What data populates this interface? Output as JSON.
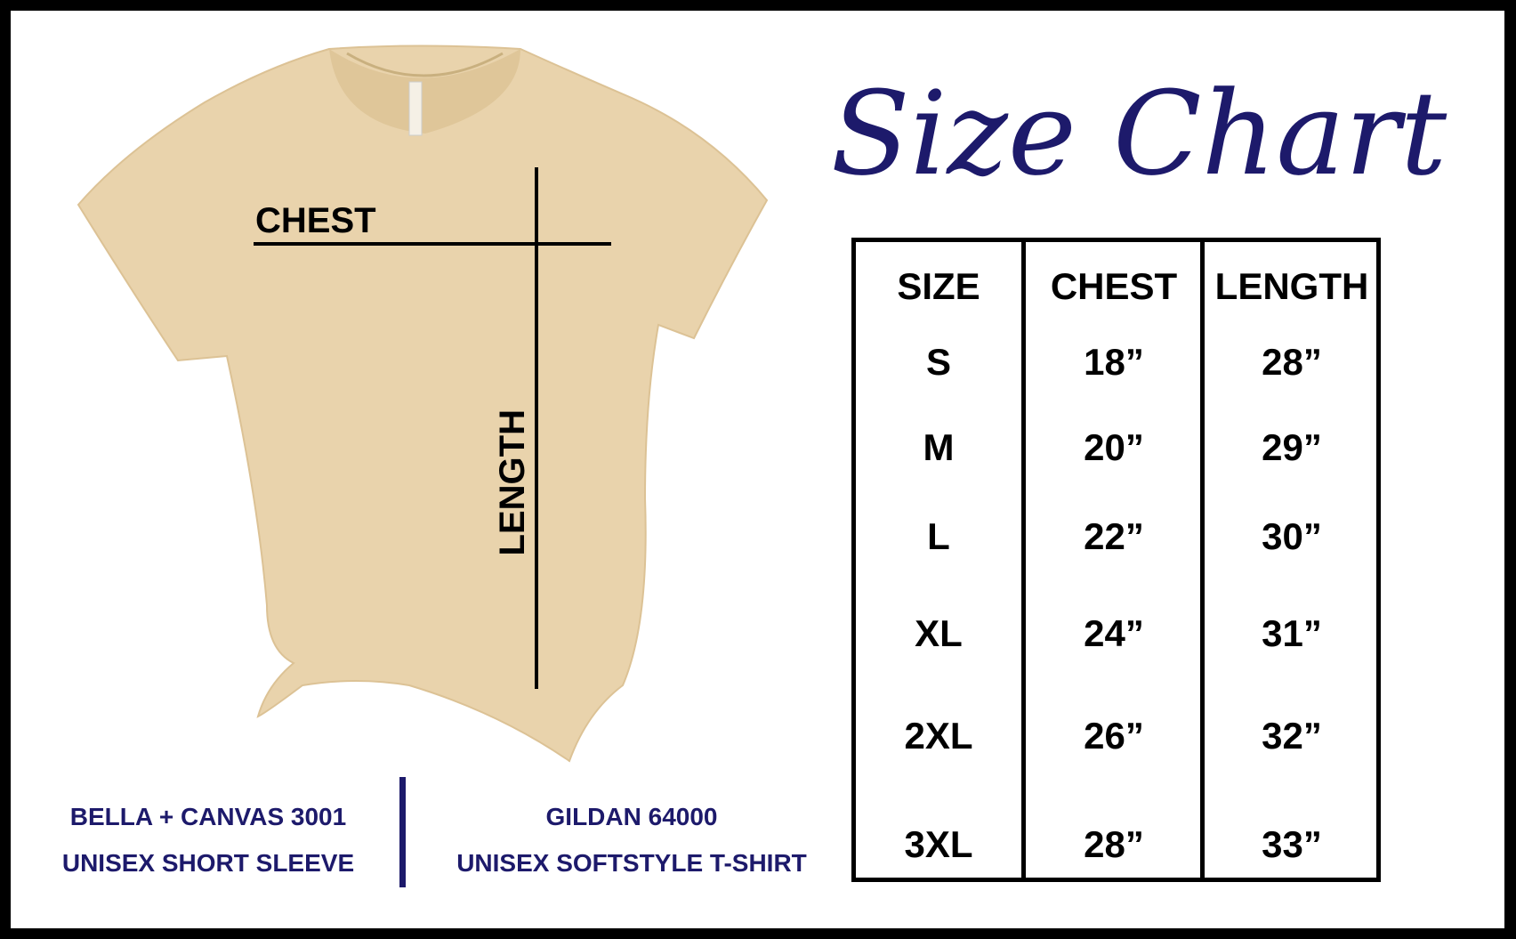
{
  "title": "Size Chart",
  "colors": {
    "accent": "#1d1a6b",
    "shirt": "#e9d3ac",
    "border": "#000000"
  },
  "diagram": {
    "chest_label": "CHEST",
    "length_label": "LENGTH"
  },
  "table": {
    "headers": [
      "SIZE",
      "CHEST",
      "LENGTH"
    ],
    "rows": [
      {
        "size": "S",
        "chest": "18”",
        "length": "28”"
      },
      {
        "size": "M",
        "chest": "20”",
        "length": "29”"
      },
      {
        "size": "L",
        "chest": "22”",
        "length": "30”"
      },
      {
        "size": "XL",
        "chest": "24”",
        "length": "31”"
      },
      {
        "size": "2XL",
        "chest": "26”",
        "length": "32”"
      },
      {
        "size": "3XL",
        "chest": "28”",
        "length": "33”"
      }
    ]
  },
  "brands": [
    {
      "line1": "BELLA + CANVAS 3001",
      "line2": "UNISEX SHORT SLEEVE"
    },
    {
      "line1": "GILDAN 64000",
      "line2": "UNISEX SOFTSTYLE T-SHIRT"
    }
  ]
}
